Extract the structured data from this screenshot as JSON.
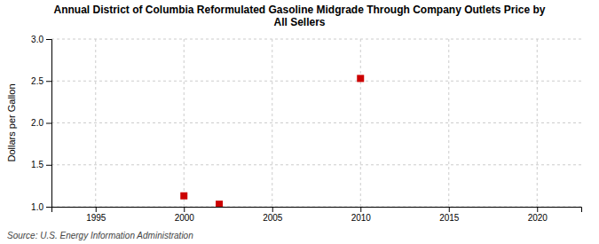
{
  "chart_data": {
    "type": "scatter",
    "title": "Annual District of Columbia Reformulated Gasoline Midgrade Through Company Outlets Price by\nAll Sellers",
    "ylabel": "Dollars per Gallon",
    "annotations": [
      "Source: U.S. Energy Information Administration"
    ],
    "x": [
      2000,
      2002,
      2010
    ],
    "values": [
      1.13,
      1.03,
      2.53
    ],
    "color": "#cc0000",
    "marker": "square",
    "xlim": [
      1992.5,
      2022.5
    ],
    "ylim": [
      1.0,
      3.0
    ],
    "xticks": [
      1995,
      2000,
      2005,
      2010,
      2015,
      2020
    ],
    "yticks": [
      {
        "value": 1.0,
        "label": "1.0"
      },
      1.5,
      {
        "value": 2.0,
        "label": "2.0"
      },
      2.5,
      {
        "value": 3.0,
        "label": "3.0"
      }
    ],
    "grid": true
  }
}
